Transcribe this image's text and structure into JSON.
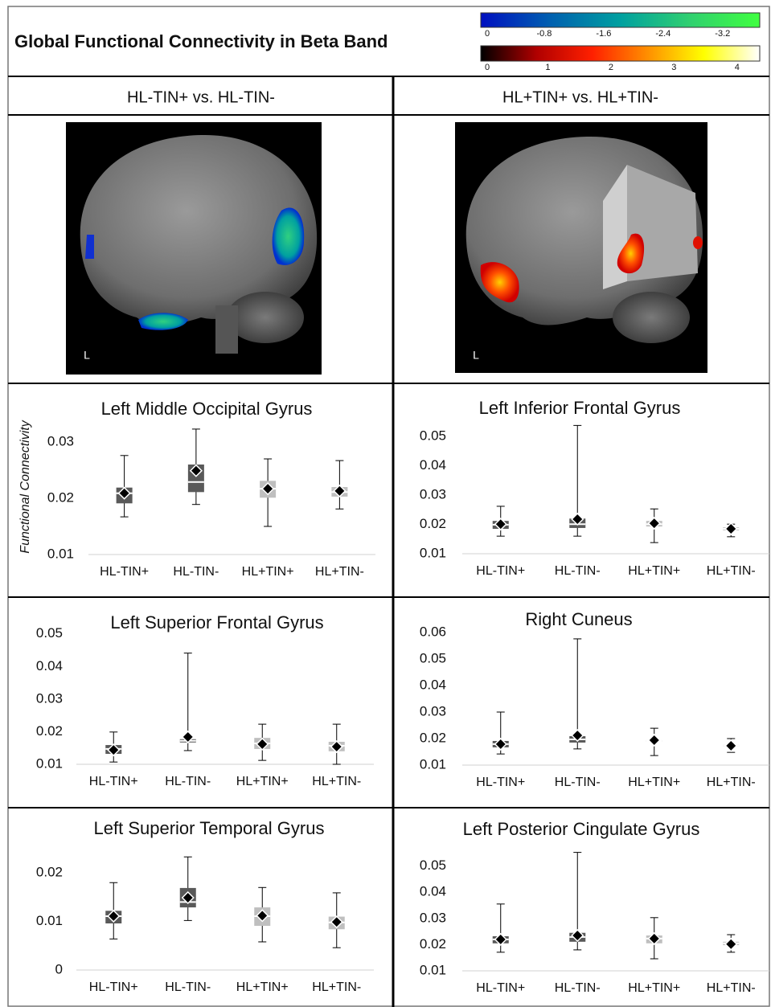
{
  "header": {
    "title": "Global Functional Connectivity in Beta Band"
  },
  "colorbars": [
    {
      "lim": [
        0,
        -3.7
      ],
      "ticks": [
        0,
        -0.8,
        -1.6,
        -2.4,
        -3.2
      ],
      "colors": [
        "#0010c0",
        "#0060b0",
        "#00a0a0",
        "#30d070",
        "#40ff40"
      ]
    },
    {
      "lim": [
        0,
        4.36
      ],
      "ticks": [
        0,
        1,
        2,
        3,
        4
      ],
      "colors": [
        "#000000",
        "#b00000",
        "#ff2000",
        "#ff9000",
        "#ffff00",
        "#ffffff"
      ]
    }
  ],
  "comparisons": [
    "HL-TIN+ vs. HL-TIN-",
    "HL+TIN+ vs. HL+TIN-"
  ],
  "brain_label": "L",
  "chart_data": [
    {
      "type": "box",
      "title": "Left Middle Occipital Gyrus",
      "ylabel": "Functional Connectivity",
      "categories": [
        "HL-TIN+",
        "HL-TIN-",
        "HL+TIN+",
        "HL+TIN-"
      ],
      "colors": [
        "#595959",
        "#595959",
        "#bfbfbf",
        "#bfbfbf"
      ],
      "min": [
        0.0167,
        0.0189,
        0.015,
        0.0181
      ],
      "q1": [
        0.0191,
        0.0211,
        0.0201,
        0.0203
      ],
      "median": [
        0.0209,
        0.0229,
        0.0217,
        0.0211
      ],
      "q3": [
        0.0219,
        0.026,
        0.0231,
        0.022
      ],
      "max": [
        0.0276,
        0.0323,
        0.027,
        0.0267
      ],
      "mean": [
        0.0209,
        0.0249,
        0.0217,
        0.0213
      ],
      "ylim": [
        0.01,
        0.033
      ],
      "yticks": [
        0.01,
        0.02,
        0.03
      ]
    },
    {
      "type": "box",
      "title": "Left Inferior Frontal Gyrus",
      "categories": [
        "HL-TIN+",
        "HL-TIN-",
        "HL+TIN+",
        "HL+TIN-"
      ],
      "colors": [
        "#595959",
        "#595959",
        "#bfbfbf",
        "#bfbfbf"
      ],
      "min": [
        0.016,
        0.016,
        0.0138,
        0.0158
      ],
      "q1": [
        0.0185,
        0.0188,
        0.0193,
        0.018
      ],
      "median": [
        0.0199,
        0.0201,
        0.0201,
        0.0185
      ],
      "q3": [
        0.0212,
        0.022,
        0.0212,
        0.019
      ],
      "max": [
        0.0262,
        0.0538,
        0.0253,
        0.0201
      ],
      "mean": [
        0.0201,
        0.0218,
        0.0204,
        0.0185
      ],
      "ylim": [
        0.01,
        0.055
      ],
      "yticks": [
        0.01,
        0.02,
        0.03,
        0.04,
        0.05
      ]
    },
    {
      "type": "box",
      "title": "Left Superior Frontal Gyrus",
      "categories": [
        "HL-TIN+",
        "HL-TIN-",
        "HL+TIN+",
        "HL+TIN-"
      ],
      "colors": [
        "#595959",
        "#595959",
        "#bfbfbf",
        "#bfbfbf"
      ],
      "min": [
        0.0107,
        0.0142,
        0.0112,
        0.01
      ],
      "q1": [
        0.0132,
        0.0167,
        0.0147,
        0.014
      ],
      "median": [
        0.0147,
        0.0172,
        0.0164,
        0.0157
      ],
      "q3": [
        0.0159,
        0.0177,
        0.0181,
        0.0169
      ],
      "max": [
        0.0199,
        0.0441,
        0.0223,
        0.0223
      ],
      "mean": [
        0.0144,
        0.0184,
        0.0162,
        0.0154
      ],
      "ylim": [
        0.01,
        0.045
      ],
      "yticks": [
        0.01,
        0.02,
        0.03,
        0.04,
        0.05
      ]
    },
    {
      "type": "box",
      "title": "Right Cuneus",
      "categories": [
        "HL-TIN+",
        "HL-TIN-",
        "HL+TIN+",
        "HL+TIN-"
      ],
      "colors": [
        "#595959",
        "#595959",
        "#bfbfbf",
        "#bfbfbf"
      ],
      "min": [
        0.0142,
        0.0161,
        0.0136,
        0.0148
      ],
      "q1": [
        0.0167,
        0.0185,
        0.0188,
        0.017
      ],
      "median": [
        0.0179,
        0.0197,
        0.0191,
        0.0173
      ],
      "q3": [
        0.0191,
        0.0209,
        0.0194,
        0.0176
      ],
      "max": [
        0.03,
        0.0576,
        0.0239,
        0.02
      ],
      "mean": [
        0.0179,
        0.0212,
        0.0194,
        0.0173
      ],
      "ylim": [
        0.01,
        0.06
      ],
      "yticks": [
        0.01,
        0.02,
        0.03,
        0.04,
        0.05,
        0.06
      ]
    },
    {
      "type": "box",
      "title": "Left Superior Temporal Gyrus",
      "categories": [
        "HL-TIN+",
        "HL-TIN-",
        "HL+TIN+",
        "HL+TIN-"
      ],
      "colors": [
        "#595959",
        "#595959",
        "#bfbfbf",
        "#bfbfbf"
      ],
      "min": [
        0.0064,
        0.0102,
        0.0058,
        0.0046
      ],
      "q1": [
        0.0096,
        0.0129,
        0.0091,
        0.0084
      ],
      "median": [
        0.0111,
        0.014,
        0.0111,
        0.0098
      ],
      "q3": [
        0.0122,
        0.0169,
        0.0129,
        0.011
      ],
      "max": [
        0.018,
        0.0233,
        0.017,
        0.0159
      ],
      "mean": [
        0.0111,
        0.0149,
        0.0112,
        0.0099
      ],
      "ylim": [
        0,
        0.024
      ],
      "yticks": [
        0,
        0.01,
        0.02
      ]
    },
    {
      "type": "box",
      "title": "Left Posterior Cingulate Gyrus",
      "categories": [
        "HL-TIN+",
        "HL-TIN-",
        "HL+TIN+",
        "HL+TIN-"
      ],
      "colors": [
        "#595959",
        "#595959",
        "#bfbfbf",
        "#bfbfbf"
      ],
      "min": [
        0.0171,
        0.018,
        0.0146,
        0.0171
      ],
      "q1": [
        0.0205,
        0.0211,
        0.0205,
        0.0198
      ],
      "median": [
        0.022,
        0.0229,
        0.0223,
        0.0205
      ],
      "q3": [
        0.0232,
        0.0245,
        0.0235,
        0.0211
      ],
      "max": [
        0.0355,
        0.0552,
        0.0303,
        0.0238
      ],
      "mean": [
        0.022,
        0.0235,
        0.0223,
        0.0202
      ],
      "ylim": [
        0.01,
        0.056
      ],
      "yticks": [
        0.01,
        0.02,
        0.03,
        0.04,
        0.05
      ]
    }
  ]
}
